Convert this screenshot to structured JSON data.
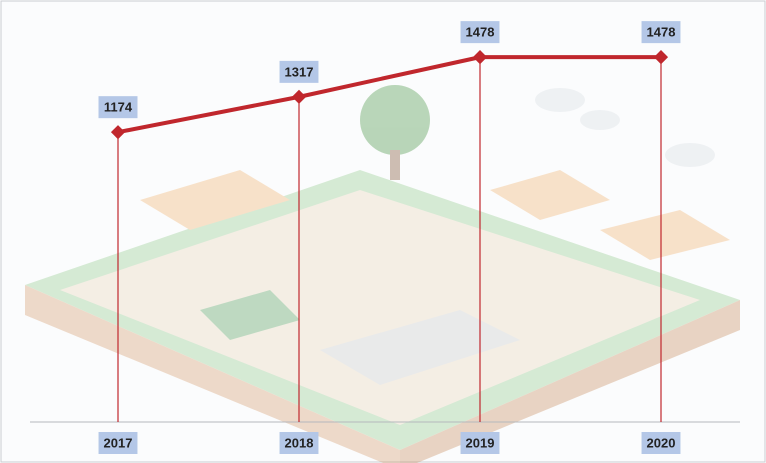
{
  "chart_data": {
    "type": "line",
    "categories": [
      "2017",
      "2018",
      "2019",
      "2020"
    ],
    "values": [
      1174,
      1317,
      1478,
      1478
    ],
    "color": "#c0272d",
    "ylim": [
      0,
      1600
    ],
    "drop_lines": true
  }
}
